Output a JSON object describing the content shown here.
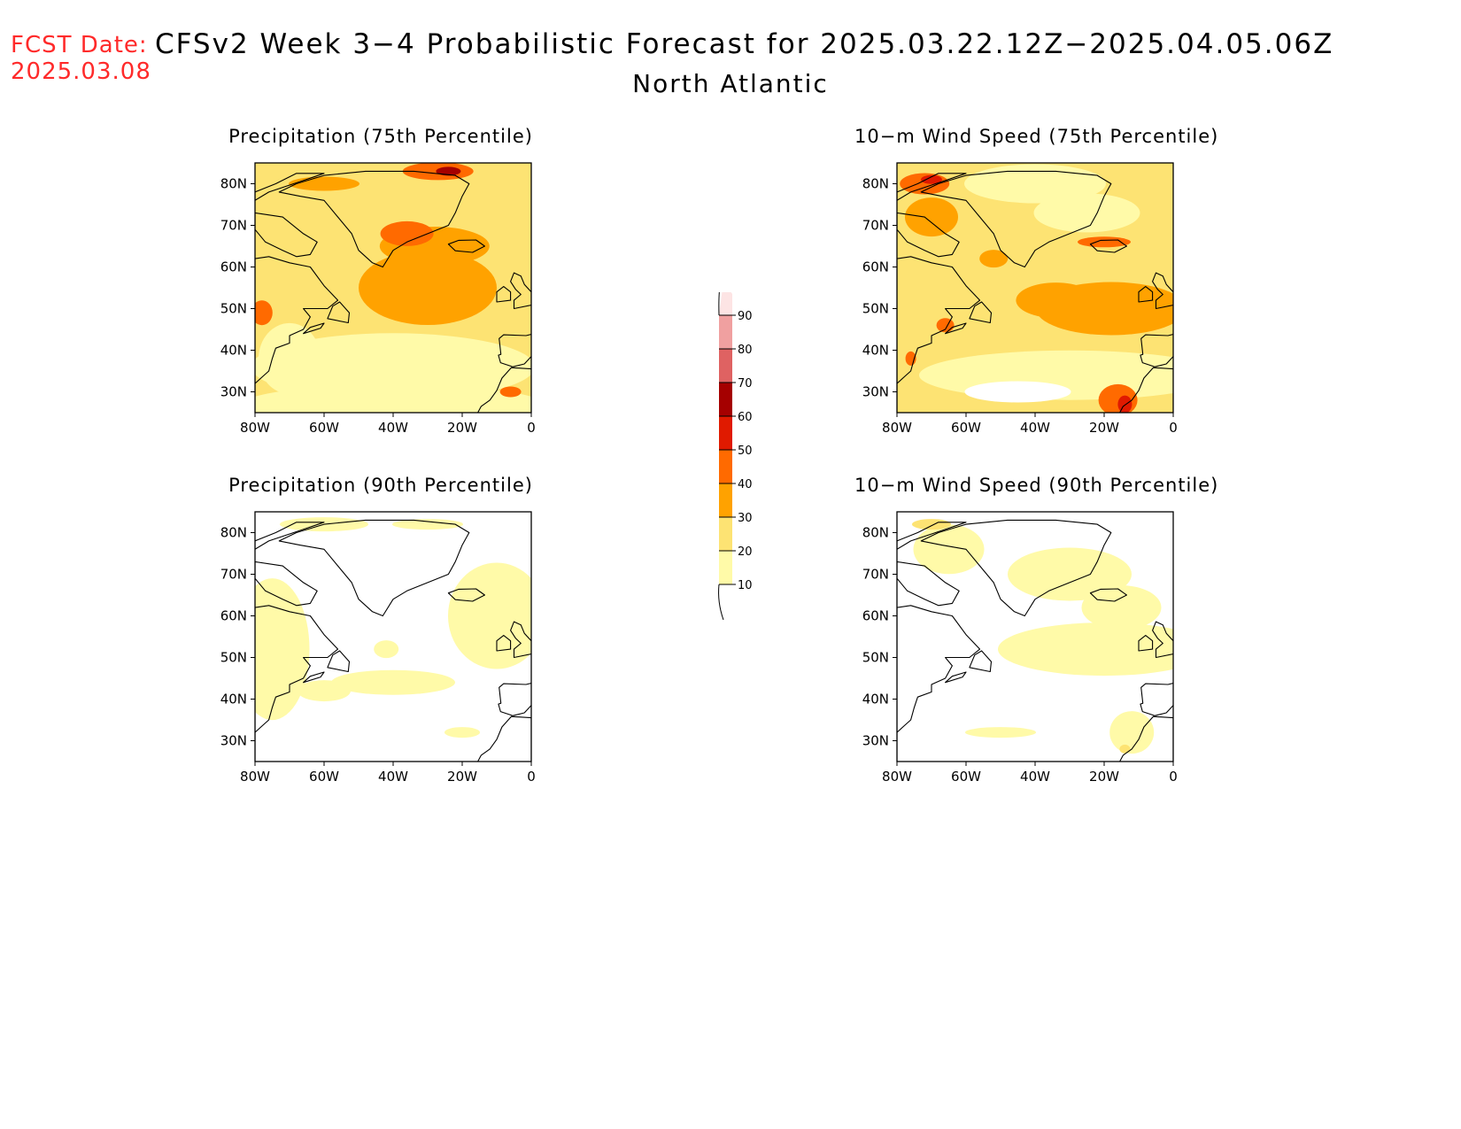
{
  "header": {
    "fcst_label": "FCST Date:",
    "fcst_date": "2025.03.08",
    "title": "CFSv2 Week 3−4 Probabilistic Forecast for 2025.03.22.12Z−2025.04.05.06Z",
    "region": "North Atlantic"
  },
  "panels": [
    {
      "id": "precip75",
      "title": "Precipitation (75th Percentile)",
      "shading": "high"
    },
    {
      "id": "wind75",
      "title": "10−m Wind Speed (75th Percentile)",
      "shading": "high"
    },
    {
      "id": "precip90",
      "title": "Precipitation (90th Percentile)",
      "shading": "low"
    },
    {
      "id": "wind90",
      "title": "10−m Wind Speed (90th Percentile)",
      "shading": "low"
    }
  ],
  "axes": {
    "lat_labels": [
      "80N",
      "70N",
      "60N",
      "50N",
      "40N",
      "30N"
    ],
    "lon_labels": [
      "80W",
      "60W",
      "40W",
      "20W",
      "0"
    ]
  },
  "colorbar": {
    "levels": [
      "10",
      "20",
      "30",
      "40",
      "50",
      "60",
      "70",
      "80",
      "90"
    ],
    "colors": [
      "#fffaa8",
      "#fde373",
      "#ffa200",
      "#ff6a00",
      "#e01a00",
      "#a50000",
      "#df6262",
      "#f0a0a0",
      "#fde4e4"
    ]
  }
}
